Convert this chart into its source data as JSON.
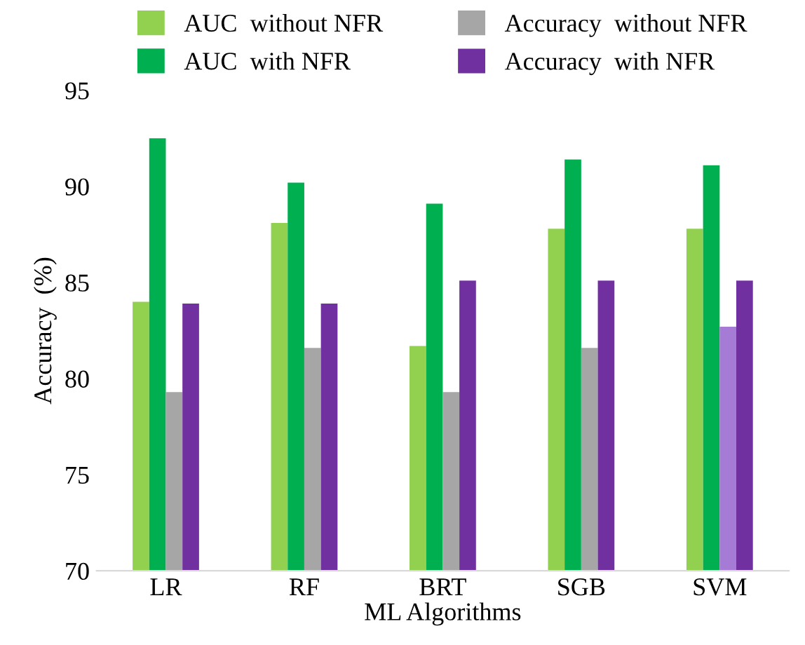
{
  "chart_data": {
    "type": "bar",
    "xlabel": "ML Algorithms",
    "ylabel": "Accuracy  (%)",
    "categories": [
      "LR",
      "RF",
      "BRT",
      "SGB",
      "SVM"
    ],
    "series": [
      {
        "name": "AUC  without NFR",
        "color": "#92d050",
        "values": [
          84.0,
          88.1,
          81.7,
          87.8,
          87.8
        ]
      },
      {
        "name": "AUC  with NFR",
        "color": "#00b050",
        "values": [
          92.5,
          90.2,
          89.1,
          91.4,
          91.1
        ]
      },
      {
        "name": "Accuracy  without NFR",
        "color": "#a6a6a6",
        "colors": [
          "#a6a6a6",
          "#a6a6a6",
          "#a6a6a6",
          "#a6a6a6",
          "#a57bd6"
        ],
        "values": [
          79.3,
          81.6,
          79.3,
          81.6,
          82.7
        ]
      },
      {
        "name": "Accuracy  with NFR",
        "color": "#7030a0",
        "values": [
          83.9,
          83.9,
          85.1,
          85.1,
          85.1
        ]
      }
    ],
    "ylim": [
      70,
      95
    ],
    "yticks": [
      70,
      75,
      80,
      85,
      90,
      95
    ],
    "grid": false,
    "legend": "top"
  }
}
